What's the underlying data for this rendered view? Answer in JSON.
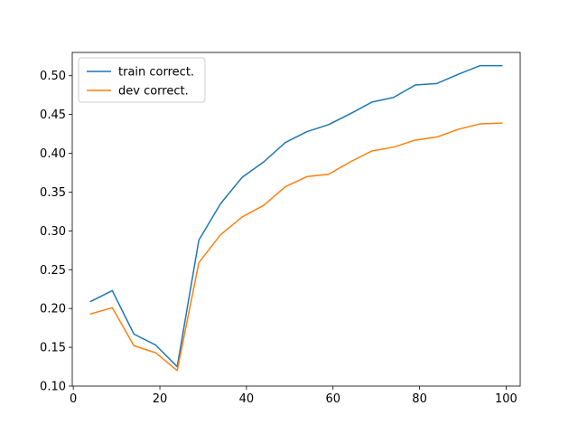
{
  "chart_data": {
    "type": "line",
    "title": "",
    "xlabel": "",
    "ylabel": "",
    "xlim": [
      -0.25,
      103.25
    ],
    "ylim": [
      0.1,
      0.53
    ],
    "xticks": [
      0,
      20,
      40,
      60,
      80,
      100
    ],
    "xtick_labels": [
      "0",
      "20",
      "40",
      "60",
      "80",
      "100"
    ],
    "yticks": [
      0.1,
      0.15,
      0.2,
      0.25,
      0.3,
      0.35,
      0.4,
      0.45,
      0.5
    ],
    "ytick_labels": [
      "0.10",
      "0.15",
      "0.20",
      "0.25",
      "0.30",
      "0.35",
      "0.40",
      "0.45",
      "0.50"
    ],
    "grid": false,
    "legend_position": "top-left",
    "x": [
      4,
      9,
      14,
      19,
      24,
      29,
      34,
      39,
      44,
      49,
      54,
      59,
      64,
      69,
      74,
      79,
      84,
      89,
      94,
      99
    ],
    "series": [
      {
        "name": "train correct.",
        "color": "#1f77b4",
        "values": [
          0.209,
          0.223,
          0.167,
          0.153,
          0.125,
          0.288,
          0.335,
          0.369,
          0.389,
          0.414,
          0.428,
          0.437,
          0.451,
          0.466,
          0.472,
          0.488,
          0.49,
          0.502,
          0.513,
          0.513
        ]
      },
      {
        "name": "dev correct.",
        "color": "#ff7f0e",
        "values": [
          0.193,
          0.201,
          0.152,
          0.143,
          0.12,
          0.259,
          0.295,
          0.318,
          0.333,
          0.357,
          0.37,
          0.373,
          0.389,
          0.403,
          0.408,
          0.417,
          0.421,
          0.431,
          0.438,
          0.439
        ]
      }
    ]
  }
}
